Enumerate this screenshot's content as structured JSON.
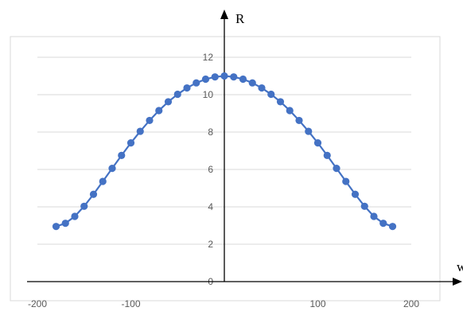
{
  "chart_data": {
    "type": "line",
    "title": "",
    "xlabel": "w",
    "ylabel": "R",
    "xlim": [
      -200,
      200
    ],
    "ylim": [
      0,
      12
    ],
    "x_ticks": [
      -200,
      -100,
      0,
      100,
      200
    ],
    "y_ticks": [
      0,
      2,
      4,
      6,
      8,
      10,
      12
    ],
    "grid": "horizontal",
    "legend": "none",
    "series": [
      {
        "color": "#4472C4",
        "marker": "circle",
        "points": [
          {
            "x": -180,
            "y": 2.95
          },
          {
            "x": -170,
            "y": 3.12
          },
          {
            "x": -160,
            "y": 3.49
          },
          {
            "x": -150,
            "y": 4.03
          },
          {
            "x": -140,
            "y": 4.67
          },
          {
            "x": -130,
            "y": 5.36
          },
          {
            "x": -120,
            "y": 6.06
          },
          {
            "x": -110,
            "y": 6.75
          },
          {
            "x": -100,
            "y": 7.42
          },
          {
            "x": -90,
            "y": 8.04
          },
          {
            "x": -80,
            "y": 8.62
          },
          {
            "x": -70,
            "y": 9.15
          },
          {
            "x": -60,
            "y": 9.62
          },
          {
            "x": -50,
            "y": 10.02
          },
          {
            "x": -40,
            "y": 10.36
          },
          {
            "x": -30,
            "y": 10.63
          },
          {
            "x": -20,
            "y": 10.83
          },
          {
            "x": -10,
            "y": 10.95
          },
          {
            "x": 0,
            "y": 11.0
          },
          {
            "x": 10,
            "y": 10.95
          },
          {
            "x": 20,
            "y": 10.83
          },
          {
            "x": 30,
            "y": 10.63
          },
          {
            "x": 40,
            "y": 10.36
          },
          {
            "x": 50,
            "y": 10.02
          },
          {
            "x": 60,
            "y": 9.62
          },
          {
            "x": 70,
            "y": 9.15
          },
          {
            "x": 80,
            "y": 8.62
          },
          {
            "x": 90,
            "y": 8.04
          },
          {
            "x": 100,
            "y": 7.42
          },
          {
            "x": 110,
            "y": 6.75
          },
          {
            "x": 120,
            "y": 6.06
          },
          {
            "x": 130,
            "y": 5.36
          },
          {
            "x": 140,
            "y": 4.67
          },
          {
            "x": 150,
            "y": 4.03
          },
          {
            "x": 160,
            "y": 3.49
          },
          {
            "x": 170,
            "y": 3.12
          },
          {
            "x": 180,
            "y": 2.95
          }
        ]
      }
    ]
  }
}
